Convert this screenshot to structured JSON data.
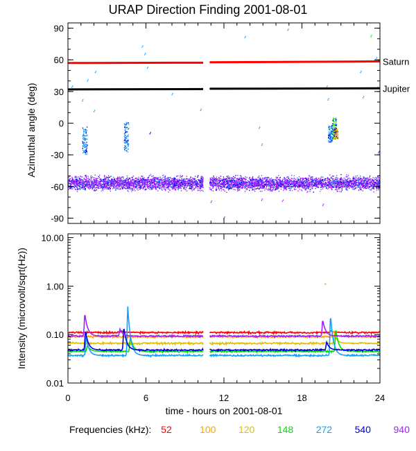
{
  "title": "URAP Direction Finding  2001-08-01",
  "colors": {
    "f52": "#ff0000",
    "f100": "#ffa500",
    "f120": "#e0c000",
    "f148": "#00e000",
    "f272": "#10a0ff",
    "f540": "#0000e0",
    "f940": "#a020ff",
    "saturn": "#ff0000",
    "jupiter": "#000000"
  },
  "chart_data": [
    {
      "type": "scatter",
      "panel": "top",
      "ylabel": "Azimuthal angle (deg)",
      "ylim": [
        -95,
        95
      ],
      "xlim": [
        0,
        24
      ],
      "y_ticks": [
        90,
        60,
        30,
        0,
        -30,
        -60,
        -90
      ],
      "y_tick_labels": [
        "90",
        "60",
        "30",
        "0",
        "-30",
        "-60",
        "-90"
      ],
      "data_gap": [
        10.4,
        10.9
      ],
      "reference_lines": [
        {
          "name": "Saturn",
          "x": [
            0,
            10.4,
            10.9,
            24
          ],
          "y": [
            57,
            57.3,
            57.7,
            58.5
          ]
        },
        {
          "name": "Jupiter",
          "x": [
            0,
            10.4,
            10.9,
            24
          ],
          "y": [
            32,
            32.3,
            32.6,
            33
          ]
        }
      ],
      "series": [
        {
          "name": "940 kHz band",
          "freq": "940",
          "kind": "band",
          "x_range": [
            0,
            24
          ],
          "y_center": -57,
          "y_spread": 9
        },
        {
          "name": "272 kHz burst 1",
          "freq": "272",
          "kind": "cluster",
          "x": 1.3,
          "y_range": [
            -30,
            -3
          ]
        },
        {
          "name": "272 kHz burst 2",
          "freq": "272",
          "kind": "cluster",
          "x": 4.5,
          "y_range": [
            -28,
            1
          ]
        },
        {
          "name": "272 kHz burst 3",
          "freq": "272",
          "kind": "cluster",
          "x": 20.2,
          "y_range": [
            -18,
            -2
          ]
        },
        {
          "name": "148 kHz burst",
          "freq": "148",
          "kind": "cluster",
          "x": 20.5,
          "y_range": [
            -15,
            5
          ]
        },
        {
          "name": "100 kHz burst",
          "freq": "100",
          "kind": "cluster",
          "x": 20.6,
          "y_range": [
            -15,
            -5
          ]
        },
        {
          "name": "540 kHz points",
          "freq": "540",
          "kind": "points",
          "x": [
            1.35,
            1.45,
            4.35,
            4.55,
            6.3,
            20.1,
            23.9
          ],
          "y": [
            -28,
            -22,
            -25,
            -18,
            -10,
            -12,
            -28
          ]
        },
        {
          "name": "scattered 272",
          "freq": "272",
          "kind": "points",
          "x": [
            0.3,
            1.1,
            1.5,
            2.1,
            5.7,
            5.9,
            6.1,
            8.0,
            10.2,
            13.6,
            14.7,
            14.9,
            19.9,
            20.0,
            22.5,
            22.7,
            23.7
          ],
          "y": [
            34,
            21,
            40,
            48,
            72,
            65,
            52,
            27,
            12,
            81,
            -5,
            -21,
            34,
            22,
            48,
            24,
            61
          ]
        },
        {
          "name": "scattered 148",
          "freq": "148",
          "kind": "points",
          "x": [
            2.0,
            16.9,
            23.3,
            23.8
          ],
          "y": [
            11,
            88,
            82,
            33
          ]
        },
        {
          "name": "outliers",
          "freq": "940",
          "kind": "points",
          "x": [
            11.0,
            12.0,
            14.9,
            16.5,
            19.6
          ],
          "y": [
            -75,
            -90,
            -73,
            -74,
            -78
          ]
        }
      ]
    },
    {
      "type": "line",
      "panel": "bottom",
      "ylabel": "Intensity (microvolt/sqrt(Hz))",
      "xlabel": "time - hours on 2001-08-01",
      "yscale": "log",
      "ylim": [
        0.01,
        12
      ],
      "xlim": [
        0,
        24
      ],
      "x_ticks": [
        0,
        6,
        12,
        18,
        24
      ],
      "x_tick_labels": [
        "0",
        "6",
        "12",
        "18",
        "24"
      ],
      "y_ticks": [
        10,
        1,
        0.1,
        0.01
      ],
      "y_tick_labels": [
        "10.00",
        "1.00",
        "0.10",
        "0.01"
      ],
      "data_gap": [
        10.4,
        10.9
      ],
      "series": [
        {
          "name": "52",
          "baseline": 0.11,
          "bursts": [
            [
              4.1,
              0.12
            ],
            [
              20.2,
              0.12
            ]
          ]
        },
        {
          "name": "100",
          "baseline": 0.09,
          "bursts": [
            [
              20.4,
              0.12
            ]
          ]
        },
        {
          "name": "120",
          "baseline": 0.066,
          "bursts": [
            [
              20.5,
              0.1
            ]
          ]
        },
        {
          "name": "148",
          "baseline": 0.045,
          "bursts": [
            [
              1.5,
              0.06
            ],
            [
              4.8,
              0.09
            ],
            [
              20.6,
              0.13
            ]
          ]
        },
        {
          "name": "272",
          "baseline": 0.037,
          "bursts": [
            [
              1.4,
              0.09
            ],
            [
              4.6,
              0.38
            ],
            [
              20.2,
              0.25
            ]
          ]
        },
        {
          "name": "540",
          "baseline": 0.048,
          "bursts": [
            [
              1.35,
              0.12
            ],
            [
              4.3,
              0.14
            ],
            [
              19.9,
              0.07
            ]
          ]
        },
        {
          "name": "940",
          "baseline": 0.093,
          "bursts": [
            [
              1.3,
              0.27
            ],
            [
              4.0,
              0.13
            ],
            [
              19.6,
              0.2
            ]
          ]
        }
      ],
      "isolated_points": [
        {
          "freq": "100",
          "x": 19.8,
          "y": 1.1
        }
      ]
    }
  ],
  "legend": {
    "label": "Frequencies (kHz):",
    "entries": [
      {
        "value": "52",
        "color": "#ff0000"
      },
      {
        "value": "100",
        "color": "#ffa500"
      },
      {
        "value": "120",
        "color": "#e0c000"
      },
      {
        "value": "148",
        "color": "#00e000"
      },
      {
        "value": "272",
        "color": "#10a0ff"
      },
      {
        "value": "540",
        "color": "#0000e0"
      },
      {
        "value": "940",
        "color": "#a020ff"
      }
    ]
  }
}
